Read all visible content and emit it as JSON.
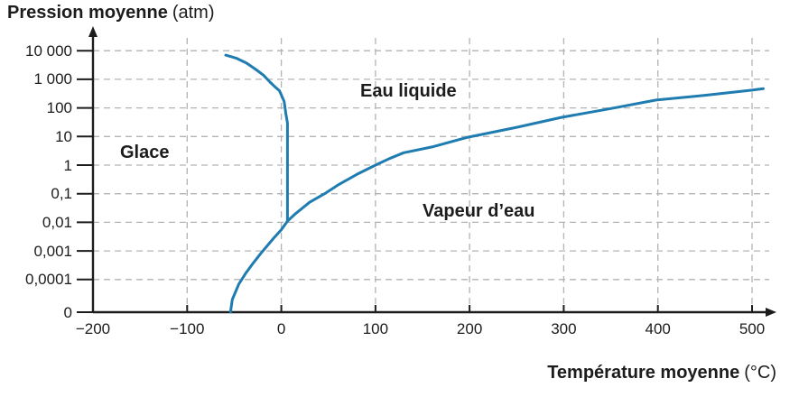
{
  "titles": {
    "y_bold": "Pression moyenne",
    "y_unit": "(atm)",
    "x_bold": "Température moyenne",
    "x_unit": "(°C)"
  },
  "y_axis": {
    "tick_labels": [
      "10 000",
      "1 000",
      "100",
      "10",
      "1",
      "0,1",
      "0,01",
      "0,001",
      "0,0001",
      "0"
    ],
    "tick_values": [
      10000,
      1000,
      100,
      10,
      1,
      0.1,
      0.01,
      0.001,
      0.0001,
      0
    ]
  },
  "x_axis": {
    "tick_labels": [
      "−200",
      "−100",
      "0",
      "100",
      "200",
      "300",
      "400",
      "500"
    ],
    "tick_values": [
      -200,
      -100,
      0,
      100,
      200,
      300,
      400,
      500
    ]
  },
  "colors": {
    "curve": "#1f7cb0",
    "grid": "#b3b3b3",
    "axis": "#1c1c1c",
    "text": "#1c1c1c"
  },
  "chart_data": {
    "type": "line",
    "xlabel": "Température moyenne (°C)",
    "ylabel": "Pression moyenne (atm)",
    "x_range": [
      -200,
      512
    ],
    "y_scale": "log",
    "y_range": [
      0,
      10000
    ],
    "grid": "dashed",
    "regions": [
      "Glace",
      "Eau liquide",
      "Vapeur d’eau"
    ],
    "series": [
      {
        "name": "fusion-glace-eau-liquide",
        "points": [
          [
            6.5,
            0.011
          ],
          [
            6.5,
            30
          ],
          [
            5,
            58
          ],
          [
            3,
            170
          ],
          [
            -2,
            400
          ],
          [
            -6,
            520
          ],
          [
            -12,
            800
          ],
          [
            -19,
            1400
          ],
          [
            -27,
            2200
          ],
          [
            -37,
            3700
          ],
          [
            -48,
            5500
          ],
          [
            -59,
            7000
          ]
        ]
      },
      {
        "name": "sublimation-glace-vapeur",
        "points": [
          [
            -54,
            0
          ],
          [
            -52,
            2e-05
          ],
          [
            -45,
            7e-05
          ],
          [
            -38,
            0.00016
          ],
          [
            -30,
            0.00037
          ],
          [
            -22,
            0.0008
          ],
          [
            -15,
            0.0015
          ],
          [
            -8,
            0.0028
          ],
          [
            0,
            0.0055
          ],
          [
            6.5,
            0.011
          ]
        ]
      },
      {
        "name": "vaporisation-eau-vapeur",
        "points": [
          [
            6.5,
            0.011
          ],
          [
            15,
            0.02
          ],
          [
            30,
            0.05
          ],
          [
            46,
            0.1
          ],
          [
            60,
            0.2
          ],
          [
            80,
            0.47
          ],
          [
            100,
            1
          ],
          [
            115,
            1.7
          ],
          [
            130,
            2.7
          ],
          [
            160,
            4.3
          ],
          [
            197,
            9.2
          ],
          [
            250,
            21
          ],
          [
            298,
            47
          ],
          [
            350,
            95
          ],
          [
            398,
            188
          ],
          [
            450,
            277
          ],
          [
            500,
            417
          ],
          [
            512,
            470
          ]
        ]
      }
    ]
  }
}
